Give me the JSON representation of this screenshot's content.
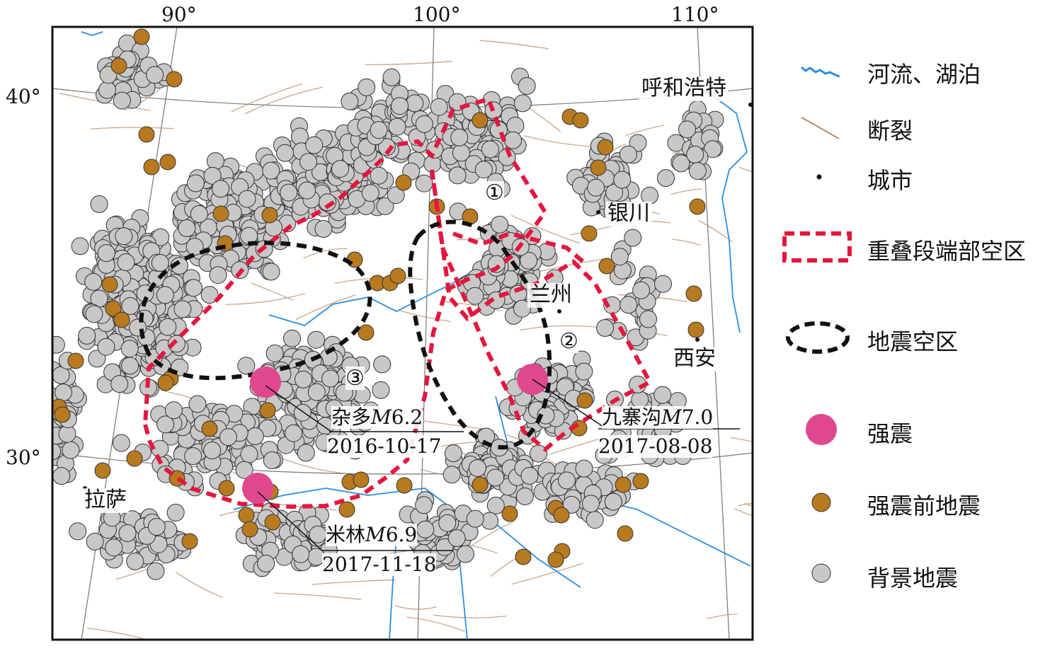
{
  "map": {
    "lon_labels": [
      "90°",
      "100°",
      "110°"
    ],
    "lat_labels": [
      "40°",
      "30°"
    ],
    "colors": {
      "background_quake": "#c8c8c8",
      "pre_quake": "#b87a1f",
      "strong_quake": "#e0488e",
      "red_zone": "#e3173e",
      "black_zone": "#111111",
      "river": "#2a8ee0",
      "fault": "#b58a6a"
    },
    "cities": [
      {
        "name": "呼和浩特"
      },
      {
        "name": "银川"
      },
      {
        "name": "兰州"
      },
      {
        "name": "西安"
      },
      {
        "name": "拉萨"
      }
    ],
    "zones": [
      "①",
      "②",
      "③"
    ],
    "strong_quakes": [
      {
        "name": "杂多",
        "mag_prefix": "M",
        "mag": "6.2",
        "date": "2016-10-17"
      },
      {
        "name": "九寨沟",
        "mag_prefix": "M",
        "mag": "7.0",
        "date": "2017-08-08"
      },
      {
        "name": "米林",
        "mag_prefix": "M",
        "mag": "6.9",
        "date": "2017-11-18"
      }
    ]
  },
  "legend": {
    "items": [
      {
        "label": "河流、湖泊",
        "icon": "river-icon"
      },
      {
        "label": "断裂",
        "icon": "fault-icon"
      },
      {
        "label": "城市",
        "icon": "city-dot-icon"
      },
      {
        "label": "重叠段端部空区",
        "icon": "red-dashed-box-icon"
      },
      {
        "label": "地震空区",
        "icon": "black-dashed-ellipse-icon"
      },
      {
        "label": "强震",
        "icon": "pink-circle-icon"
      },
      {
        "label": "强震前地震",
        "icon": "brown-circle-icon"
      },
      {
        "label": "背景地震",
        "icon": "gray-circle-icon"
      }
    ]
  }
}
